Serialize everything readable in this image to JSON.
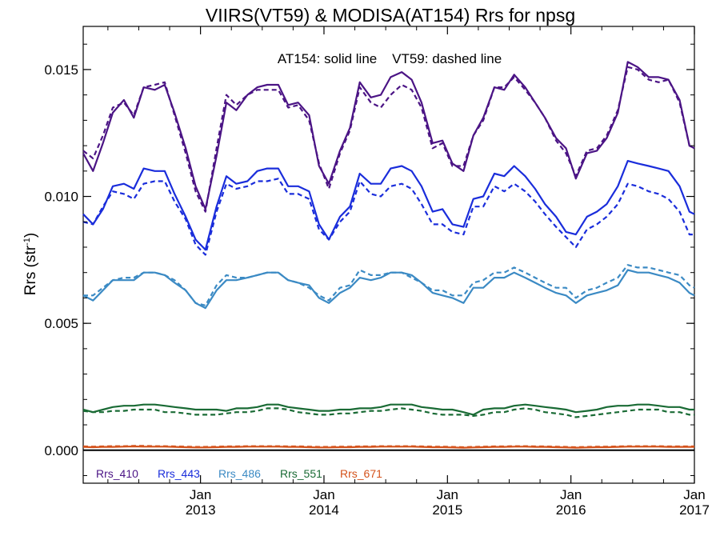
{
  "chart_data": {
    "type": "line",
    "title": "VIIRS(VT59) & MODISA(AT154)  Rrs for npsg",
    "annotation": "AT154: solid line    VT59: dashed line",
    "ylabel": {
      "main": "Rrs (str",
      "sup": "-1",
      "end": ")"
    },
    "xlabel": "",
    "ylim": [
      -0.0013,
      0.0167
    ],
    "xlim": [
      2012.05,
      2017.0
    ],
    "yticks": [
      0.0,
      0.005,
      0.01,
      0.015
    ],
    "ytick_labels": [
      "0.000",
      "0.005",
      "0.010",
      "0.015"
    ],
    "xticks": [
      2013,
      2014,
      2015,
      2016,
      2017
    ],
    "xtick_labels": [
      [
        "Jan",
        "2013"
      ],
      [
        "Jan",
        "2014"
      ],
      [
        "Jan",
        "2015"
      ],
      [
        "Jan",
        "2016"
      ],
      [
        "Jan",
        "2017"
      ]
    ],
    "grid": false,
    "legend_position": "bottom-left",
    "x": [
      2012.05,
      2012.13,
      2012.21,
      2012.29,
      2012.38,
      2012.46,
      2012.54,
      2012.63,
      2012.71,
      2012.79,
      2012.88,
      2012.96,
      2013.04,
      2013.13,
      2013.21,
      2013.29,
      2013.38,
      2013.46,
      2013.54,
      2013.63,
      2013.71,
      2013.79,
      2013.88,
      2013.96,
      2014.04,
      2014.13,
      2014.21,
      2014.29,
      2014.38,
      2014.46,
      2014.54,
      2014.63,
      2014.71,
      2014.79,
      2014.88,
      2014.96,
      2015.04,
      2015.13,
      2015.21,
      2015.29,
      2015.38,
      2015.46,
      2015.54,
      2015.63,
      2015.71,
      2015.79,
      2015.88,
      2015.96,
      2016.04,
      2016.13,
      2016.21,
      2016.29,
      2016.38,
      2016.46,
      2016.54,
      2016.63,
      2016.71,
      2016.79,
      2016.88,
      2016.96,
      2017.0
    ],
    "series": [
      {
        "name": "Rrs_410",
        "color": "#4b1485",
        "solid": [
          0.0117,
          0.011,
          0.0121,
          0.0133,
          0.0138,
          0.0131,
          0.0143,
          0.0142,
          0.0144,
          0.0133,
          0.0119,
          0.0104,
          0.0095,
          0.0116,
          0.0137,
          0.0134,
          0.014,
          0.0143,
          0.0144,
          0.0144,
          0.0136,
          0.0137,
          0.0132,
          0.0112,
          0.0105,
          0.0118,
          0.0127,
          0.0145,
          0.0139,
          0.014,
          0.0147,
          0.0149,
          0.0146,
          0.0137,
          0.0121,
          0.0122,
          0.0113,
          0.011,
          0.0124,
          0.0131,
          0.0143,
          0.0142,
          0.0148,
          0.0143,
          0.0137,
          0.0131,
          0.0123,
          0.0119,
          0.0107,
          0.0117,
          0.0118,
          0.0123,
          0.0133,
          0.0153,
          0.0151,
          0.0147,
          0.0147,
          0.0146,
          0.0138,
          0.012,
          0.0119
        ],
        "dashed": [
          0.0118,
          0.0115,
          0.0124,
          0.0135,
          0.0137,
          0.0132,
          0.0143,
          0.0144,
          0.0145,
          0.0132,
          0.0117,
          0.0102,
          0.0094,
          0.0119,
          0.014,
          0.0136,
          0.014,
          0.0142,
          0.0142,
          0.0142,
          0.0135,
          0.0136,
          0.013,
          0.0113,
          0.0103,
          0.0117,
          0.0126,
          0.0143,
          0.0137,
          0.0135,
          0.014,
          0.0144,
          0.0142,
          0.0135,
          0.0119,
          0.0121,
          0.0112,
          0.0112,
          0.0124,
          0.013,
          0.0143,
          0.0143,
          0.0147,
          0.0142,
          0.0137,
          0.0131,
          0.0122,
          0.0117,
          0.0108,
          0.0118,
          0.0119,
          0.0124,
          0.0134,
          0.0151,
          0.015,
          0.0146,
          0.0145,
          0.0146,
          0.0137,
          0.012,
          0.0119
        ]
      },
      {
        "name": "Rrs_443",
        "color": "#1a2ddb",
        "solid": [
          0.0093,
          0.0089,
          0.0095,
          0.0104,
          0.0105,
          0.0103,
          0.0111,
          0.011,
          0.011,
          0.0101,
          0.0092,
          0.0083,
          0.0079,
          0.0096,
          0.0108,
          0.0105,
          0.0106,
          0.011,
          0.0111,
          0.0111,
          0.0104,
          0.0104,
          0.0102,
          0.0089,
          0.0083,
          0.0092,
          0.0096,
          0.0109,
          0.0105,
          0.0105,
          0.0111,
          0.0112,
          0.011,
          0.0104,
          0.0094,
          0.0095,
          0.0089,
          0.0088,
          0.0099,
          0.01,
          0.0109,
          0.0108,
          0.0112,
          0.0108,
          0.0103,
          0.0097,
          0.0092,
          0.0086,
          0.0085,
          0.0092,
          0.0094,
          0.0097,
          0.0104,
          0.0114,
          0.0113,
          0.0112,
          0.0111,
          0.011,
          0.0104,
          0.0094,
          0.0093
        ],
        "dashed": [
          0.009,
          0.0089,
          0.0096,
          0.0102,
          0.0101,
          0.0099,
          0.0105,
          0.0106,
          0.0106,
          0.0098,
          0.0091,
          0.0081,
          0.0077,
          0.0094,
          0.0105,
          0.0103,
          0.0104,
          0.0106,
          0.0106,
          0.0107,
          0.0101,
          0.0101,
          0.0099,
          0.0087,
          0.0083,
          0.009,
          0.0094,
          0.0106,
          0.0101,
          0.01,
          0.0104,
          0.0105,
          0.0103,
          0.0097,
          0.0089,
          0.0089,
          0.0086,
          0.0085,
          0.0096,
          0.0096,
          0.0104,
          0.0102,
          0.0105,
          0.0102,
          0.0098,
          0.0093,
          0.0088,
          0.0084,
          0.008,
          0.0087,
          0.0089,
          0.0092,
          0.0097,
          0.0105,
          0.0104,
          0.0102,
          0.0101,
          0.0099,
          0.0094,
          0.0085,
          0.0085
        ]
      },
      {
        "name": "Rrs_486",
        "color": "#3b8ac4",
        "solid": [
          0.0061,
          0.0059,
          0.0063,
          0.0067,
          0.0067,
          0.0067,
          0.007,
          0.007,
          0.0069,
          0.0066,
          0.0063,
          0.0058,
          0.0056,
          0.0063,
          0.0067,
          0.0067,
          0.0068,
          0.0069,
          0.007,
          0.007,
          0.0067,
          0.0066,
          0.0065,
          0.006,
          0.0058,
          0.0062,
          0.0064,
          0.0068,
          0.0067,
          0.0068,
          0.007,
          0.007,
          0.0069,
          0.0066,
          0.0062,
          0.0061,
          0.006,
          0.0058,
          0.0064,
          0.0064,
          0.0068,
          0.0068,
          0.007,
          0.0068,
          0.0066,
          0.0064,
          0.0062,
          0.0061,
          0.0058,
          0.0061,
          0.0062,
          0.0063,
          0.0065,
          0.0071,
          0.007,
          0.007,
          0.0069,
          0.0068,
          0.0066,
          0.0062,
          0.0061
        ],
        "dashed": [
          0.0061,
          0.0061,
          0.0064,
          0.0067,
          0.0068,
          0.0068,
          0.007,
          0.007,
          0.0069,
          0.0067,
          0.0063,
          0.0058,
          0.0057,
          0.0065,
          0.0069,
          0.0068,
          0.0068,
          0.0069,
          0.007,
          0.007,
          0.0067,
          0.0066,
          0.0064,
          0.0061,
          0.0059,
          0.0064,
          0.0065,
          0.0071,
          0.0069,
          0.0069,
          0.007,
          0.007,
          0.0068,
          0.0066,
          0.0063,
          0.0063,
          0.0061,
          0.0061,
          0.0066,
          0.0067,
          0.007,
          0.007,
          0.0072,
          0.007,
          0.0068,
          0.0066,
          0.0064,
          0.0064,
          0.006,
          0.0063,
          0.0064,
          0.0066,
          0.0068,
          0.0073,
          0.0072,
          0.0072,
          0.0071,
          0.007,
          0.0069,
          0.0065,
          0.0064
        ]
      },
      {
        "name": "Rrs_551",
        "color": "#1a6b35",
        "solid": [
          0.0016,
          0.0015,
          0.0016,
          0.0017,
          0.00175,
          0.00175,
          0.0018,
          0.0018,
          0.00175,
          0.0017,
          0.00165,
          0.0016,
          0.0016,
          0.0016,
          0.00155,
          0.00165,
          0.00165,
          0.0017,
          0.0018,
          0.0018,
          0.0017,
          0.00165,
          0.0016,
          0.00155,
          0.00155,
          0.0016,
          0.0016,
          0.00165,
          0.00165,
          0.0017,
          0.0018,
          0.0018,
          0.0018,
          0.0017,
          0.00165,
          0.0016,
          0.0016,
          0.0015,
          0.0014,
          0.0016,
          0.00165,
          0.00165,
          0.00175,
          0.0018,
          0.00175,
          0.0017,
          0.00165,
          0.0016,
          0.0015,
          0.00155,
          0.0016,
          0.0017,
          0.00175,
          0.00175,
          0.0018,
          0.0018,
          0.00175,
          0.0017,
          0.0017,
          0.0016,
          0.0016
        ],
        "dashed": [
          0.00155,
          0.0015,
          0.0015,
          0.00155,
          0.00155,
          0.0016,
          0.0016,
          0.0016,
          0.0015,
          0.0015,
          0.00145,
          0.0014,
          0.0014,
          0.0014,
          0.00145,
          0.0015,
          0.0015,
          0.00155,
          0.00165,
          0.00165,
          0.0016,
          0.0015,
          0.00145,
          0.0014,
          0.0014,
          0.00145,
          0.00145,
          0.0015,
          0.00155,
          0.00155,
          0.0016,
          0.00165,
          0.0016,
          0.00155,
          0.00145,
          0.0014,
          0.0014,
          0.0014,
          0.00135,
          0.0014,
          0.0015,
          0.0015,
          0.0016,
          0.00165,
          0.0016,
          0.0015,
          0.00145,
          0.0014,
          0.0013,
          0.00135,
          0.0014,
          0.00145,
          0.0015,
          0.00155,
          0.0016,
          0.0016,
          0.0016,
          0.0015,
          0.0015,
          0.0014,
          0.0014
        ]
      },
      {
        "name": "Rrs_671",
        "color": "#d4521b",
        "solid": [
          0.00013,
          0.00012,
          0.00013,
          0.00013,
          0.00014,
          0.00015,
          0.00014,
          0.00014,
          0.00014,
          0.00013,
          0.00012,
          0.00011,
          0.00011,
          0.00012,
          0.00013,
          0.00013,
          0.00014,
          0.00014,
          0.00014,
          0.00014,
          0.00013,
          0.00013,
          0.00012,
          0.00011,
          0.00011,
          0.00012,
          0.00012,
          0.00013,
          0.00013,
          0.00014,
          0.00014,
          0.00014,
          0.00014,
          0.00013,
          0.00012,
          0.00012,
          0.00011,
          0.0001,
          0.00011,
          0.00012,
          0.00013,
          0.00013,
          0.00014,
          0.00014,
          0.00013,
          0.00013,
          0.00012,
          0.00011,
          0.0001,
          0.00011,
          0.00012,
          0.00012,
          0.00013,
          0.00014,
          0.00014,
          0.00014,
          0.00014,
          0.00013,
          0.00013,
          0.00013,
          0.00013
        ],
        "dashed": [
          0.00015,
          0.00014,
          0.00015,
          0.00016,
          0.00016,
          0.00017,
          0.00017,
          0.00016,
          0.00016,
          0.00015,
          0.00014,
          0.00013,
          0.00013,
          0.00014,
          0.00015,
          0.00015,
          0.00016,
          0.00016,
          0.00016,
          0.00016,
          0.00015,
          0.00015,
          0.00014,
          0.00013,
          0.00013,
          0.00014,
          0.00014,
          0.00015,
          0.00015,
          0.00016,
          0.00016,
          0.00016,
          0.00016,
          0.00015,
          0.00014,
          0.00014,
          0.00013,
          0.00012,
          0.00013,
          0.00014,
          0.00015,
          0.00015,
          0.00016,
          0.00016,
          0.00015,
          0.00015,
          0.00014,
          0.00013,
          0.00012,
          0.00013,
          0.00014,
          0.00014,
          0.00015,
          0.00016,
          0.00016,
          0.00016,
          0.00016,
          0.00015,
          0.00015,
          0.00015,
          0.00015
        ]
      }
    ]
  }
}
